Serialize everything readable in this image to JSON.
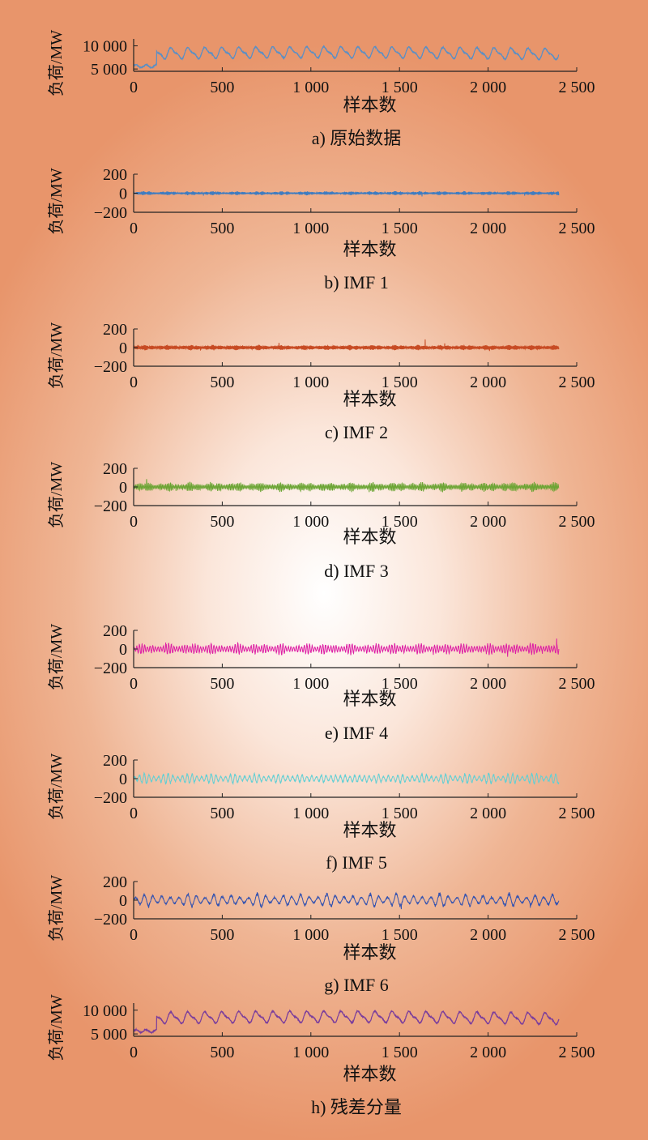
{
  "chart_data": [
    {
      "id": "a",
      "type": "line",
      "caption": "a) 原始数据",
      "xlabel": "样本数",
      "ylabel": "负荷/MW",
      "xlim": [
        0,
        2500
      ],
      "ylim": [
        4500,
        11500
      ],
      "xticks": [
        0,
        500,
        1000,
        1500,
        2000,
        2500
      ],
      "xtick_labels": [
        "0",
        "500",
        "1 000",
        "1 500",
        "2 000",
        "2 500"
      ],
      "yticks": [
        5000,
        10000
      ],
      "ytick_labels": [
        "5 000",
        "10 000"
      ],
      "color": "#5a8fc5",
      "n_points": 2400,
      "kind": "load",
      "base": 8300,
      "daily_amplitude": 1000,
      "low_start_value": 5600,
      "low_end_index": 130
    },
    {
      "id": "b",
      "type": "line",
      "caption": "b) IMF 1",
      "xlabel": "样本数",
      "ylabel": "负荷/MW",
      "xlim": [
        0,
        2500
      ],
      "ylim": [
        -200,
        200
      ],
      "xticks": [
        0,
        500,
        1000,
        1500,
        2000,
        2500
      ],
      "xtick_labels": [
        "0",
        "500",
        "1 000",
        "1 500",
        "2 000",
        "2 500"
      ],
      "yticks": [
        200,
        0,
        -200
      ],
      "ytick_labels": [
        "200",
        "0",
        "−200"
      ],
      "color": "#3f7cc0",
      "n_points": 2400,
      "kind": "noise",
      "typical_amplitude": 20,
      "peak_amplitude": 70,
      "period": 1
    },
    {
      "id": "c",
      "type": "line",
      "caption": "c) IMF 2",
      "xlabel": "样本数",
      "ylabel": "负荷/MW",
      "xlim": [
        0,
        2500
      ],
      "ylim": [
        -200,
        200
      ],
      "xticks": [
        0,
        500,
        1000,
        1500,
        2000,
        2500
      ],
      "xtick_labels": [
        "0",
        "500",
        "1 000",
        "1 500",
        "2 000",
        "2 500"
      ],
      "yticks": [
        200,
        0,
        -200
      ],
      "ytick_labels": [
        "200",
        "0",
        "−200"
      ],
      "color": "#c74b24",
      "n_points": 2400,
      "kind": "noise",
      "typical_amplitude": 25,
      "peak_amplitude": 100,
      "period": 2
    },
    {
      "id": "d",
      "type": "line",
      "caption": "d) IMF 3",
      "xlabel": "样本数",
      "ylabel": "负荷/MW",
      "xlim": [
        0,
        2500
      ],
      "ylim": [
        -200,
        200
      ],
      "xticks": [
        0,
        500,
        1000,
        1500,
        2000,
        2500
      ],
      "xtick_labels": [
        "0",
        "500",
        "1 000",
        "1 500",
        "2 000",
        "2 500"
      ],
      "yticks": [
        200,
        0,
        -200
      ],
      "ytick_labels": [
        "200",
        "0",
        "−200"
      ],
      "color": "#6aa432",
      "n_points": 2400,
      "kind": "noise",
      "typical_amplitude": 45,
      "peak_amplitude": 90,
      "period": 4
    },
    {
      "id": "e",
      "type": "line",
      "caption": "e) IMF 4",
      "xlabel": "样本数",
      "ylabel": "负荷/MW",
      "xlim": [
        0,
        2500
      ],
      "ylim": [
        -200,
        200
      ],
      "xticks": [
        0,
        500,
        1000,
        1500,
        2000,
        2500
      ],
      "xtick_labels": [
        "0",
        "500",
        "1 000",
        "1 500",
        "2 000",
        "2 500"
      ],
      "yticks": [
        200,
        0,
        -200
      ],
      "ytick_labels": [
        "200",
        "0",
        "−200"
      ],
      "color": "#dd1fa4",
      "n_points": 2400,
      "kind": "noise",
      "typical_amplitude": 55,
      "peak_amplitude": 110,
      "period": 7
    },
    {
      "id": "f",
      "type": "line",
      "caption": "f) IMF 5",
      "xlabel": "样本数",
      "ylabel": "负荷/MW",
      "xlim": [
        0,
        2500
      ],
      "ylim": [
        -200,
        200
      ],
      "xticks": [
        0,
        500,
        1000,
        1500,
        2000,
        2500
      ],
      "xtick_labels": [
        "0",
        "500",
        "1 000",
        "1 500",
        "2 000",
        "2 500"
      ],
      "yticks": [
        200,
        0,
        -200
      ],
      "ytick_labels": [
        "200",
        "0",
        "−200"
      ],
      "color": "#62cfd4",
      "n_points": 2400,
      "kind": "noise",
      "typical_amplitude": 55,
      "peak_amplitude": 100,
      "period": 13
    },
    {
      "id": "g",
      "type": "line",
      "caption": "g) IMF 6",
      "xlabel": "样本数",
      "ylabel": "负荷/MW",
      "xlim": [
        0,
        2500
      ],
      "ylim": [
        -200,
        200
      ],
      "xticks": [
        0,
        500,
        1000,
        1500,
        2000,
        2500
      ],
      "xtick_labels": [
        "0",
        "500",
        "1 000",
        "1 500",
        "2 000",
        "2 500"
      ],
      "yticks": [
        200,
        0,
        -200
      ],
      "ytick_labels": [
        "200",
        "0",
        "−200"
      ],
      "color": "#3453b0",
      "n_points": 2400,
      "kind": "noise",
      "typical_amplitude": 70,
      "peak_amplitude": 130,
      "period": 24
    },
    {
      "id": "h",
      "type": "line",
      "caption": "h) 残差分量",
      "xlabel": "样本数",
      "ylabel": "负荷/MW",
      "xlim": [
        0,
        2500
      ],
      "ylim": [
        4500,
        11500
      ],
      "xticks": [
        0,
        500,
        1000,
        1500,
        2000,
        2500
      ],
      "xtick_labels": [
        "0",
        "500",
        "1 000",
        "1 500",
        "2 000",
        "2 500"
      ],
      "yticks": [
        5000,
        10000
      ],
      "ytick_labels": [
        "5 000",
        "10 000"
      ],
      "color": "#7a3d9c",
      "n_points": 2400,
      "kind": "load",
      "base": 8300,
      "daily_amplitude": 1000,
      "low_start_value": 5600,
      "low_end_index": 130
    }
  ]
}
